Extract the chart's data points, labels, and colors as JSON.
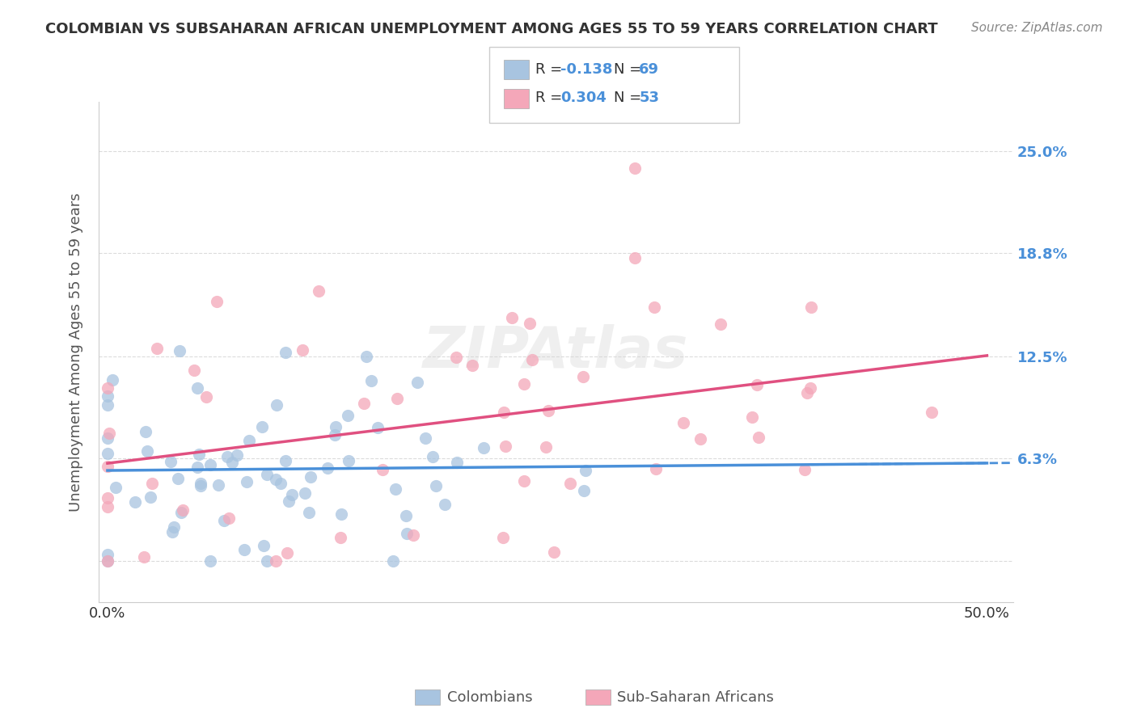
{
  "title": "COLOMBIAN VS SUBSAHARAN AFRICAN UNEMPLOYMENT AMONG AGES 55 TO 59 YEARS CORRELATION CHART",
  "source": "Source: ZipAtlas.com",
  "ylabel": "Unemployment Among Ages 55 to 59 years",
  "r_colombians": -0.138,
  "n_colombians": 69,
  "r_subsaharan": 0.304,
  "n_subsaharan": 53,
  "color_colombians": "#a8c4e0",
  "color_subsaharan": "#f4a7b9",
  "line_color_colombians": "#4a90d9",
  "line_color_subsaharan": "#e05080",
  "right_axis_color": "#4a90d9",
  "background_color": "#ffffff",
  "grid_color": "#cccccc"
}
